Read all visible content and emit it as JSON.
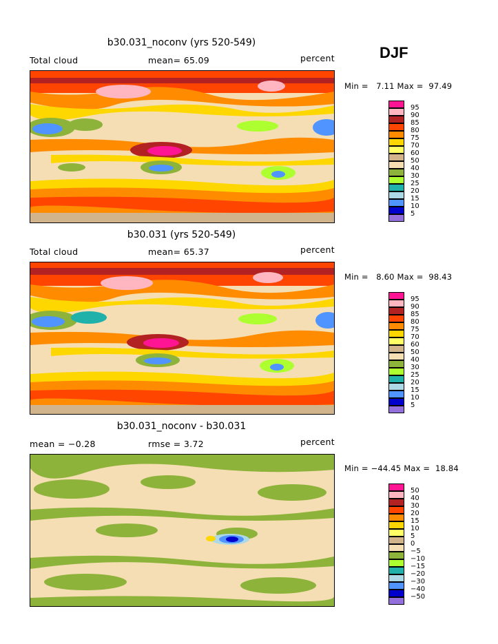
{
  "season": "DJF",
  "panels": [
    {
      "title": "b30.031_noconv (yrs 520-549)",
      "variable": "Total cloud",
      "stat": "mean=  65.09",
      "units": "percent",
      "min_label": "Min =",
      "min_value": "7.11",
      "max_label": "Max =",
      "max_value": "97.49"
    },
    {
      "title": "b30.031 (yrs 520-549)",
      "variable": "Total cloud",
      "stat": "mean=  65.37",
      "units": "percent",
      "min_label": "Min =",
      "min_value": "8.60",
      "max_label": "Max =",
      "max_value": "98.43"
    },
    {
      "title": "b30.031_noconv - b30.031",
      "variable": "mean =  −0.28",
      "stat": "rmse =   3.72",
      "units": "percent",
      "min_label": "Min =",
      "min_value": "−44.45",
      "max_label": "Max =",
      "max_value": "18.84"
    }
  ],
  "colorbar_abs": {
    "labels": [
      "95",
      "90",
      "85",
      "80",
      "75",
      "70",
      "60",
      "50",
      "40",
      "30",
      "25",
      "20",
      "15",
      "10",
      "5"
    ],
    "colors": [
      "#ff1493",
      "#ffb6c1",
      "#b22222",
      "#ff4500",
      "#ff8c00",
      "#ffd700",
      "#ffff66",
      "#d2b48c",
      "#f5deb3",
      "#8db33a",
      "#adff2f",
      "#20b2aa",
      "#add8e6",
      "#4f94ff",
      "#0000cd",
      "#9370db"
    ]
  },
  "colorbar_diff": {
    "labels": [
      "50",
      "40",
      "30",
      "20",
      "15",
      "10",
      "5",
      "0",
      "−5",
      "−10",
      "−15",
      "−20",
      "−30",
      "−40",
      "−50"
    ],
    "colors": [
      "#ff1493",
      "#ffb6c1",
      "#b22222",
      "#ff4500",
      "#ff8c00",
      "#ffd700",
      "#ffff66",
      "#d2b48c",
      "#f5deb3",
      "#8db33a",
      "#adff2f",
      "#20b2aa",
      "#add8e6",
      "#4f94ff",
      "#0000cd",
      "#9370db"
    ]
  }
}
